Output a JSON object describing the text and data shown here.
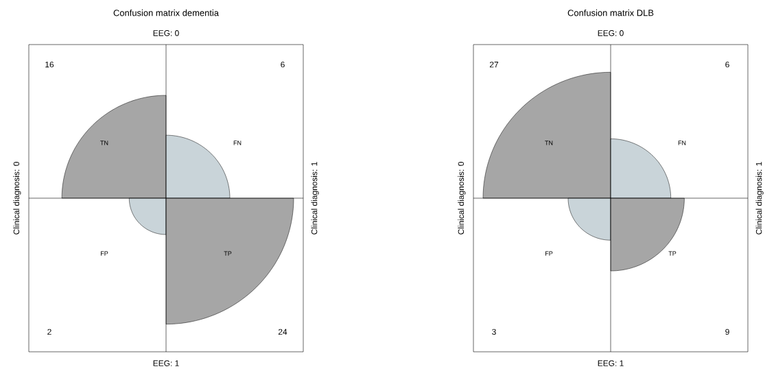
{
  "chart_data": [
    {
      "type": "other",
      "title": "Confusion matrix dementia",
      "categories": [
        "TN",
        "FN",
        "FP",
        "TP"
      ],
      "values": [
        16,
        6,
        2,
        24
      ],
      "colors": [
        "#a6a6a6",
        "#c9d4d9",
        "#c9d4d9",
        "#a6a6a6"
      ],
      "data_labels": true,
      "annotations": [
        "EEG: 0",
        "EEG: 1",
        "Clinical diagnosis: 0",
        "Clinical diagnosis: 1"
      ]
    },
    {
      "type": "other",
      "title": "Confusion matrix DLB",
      "categories": [
        "TN",
        "FN",
        "FP",
        "TP"
      ],
      "values": [
        27,
        6,
        3,
        9
      ],
      "colors": [
        "#a6a6a6",
        "#c9d4d9",
        "#c9d4d9",
        "#a6a6a6"
      ],
      "data_labels": true,
      "annotations": [
        "EEG: 0",
        "EEG: 1",
        "Clinical diagnosis: 0",
        "Clinical diagnosis: 1"
      ]
    }
  ]
}
